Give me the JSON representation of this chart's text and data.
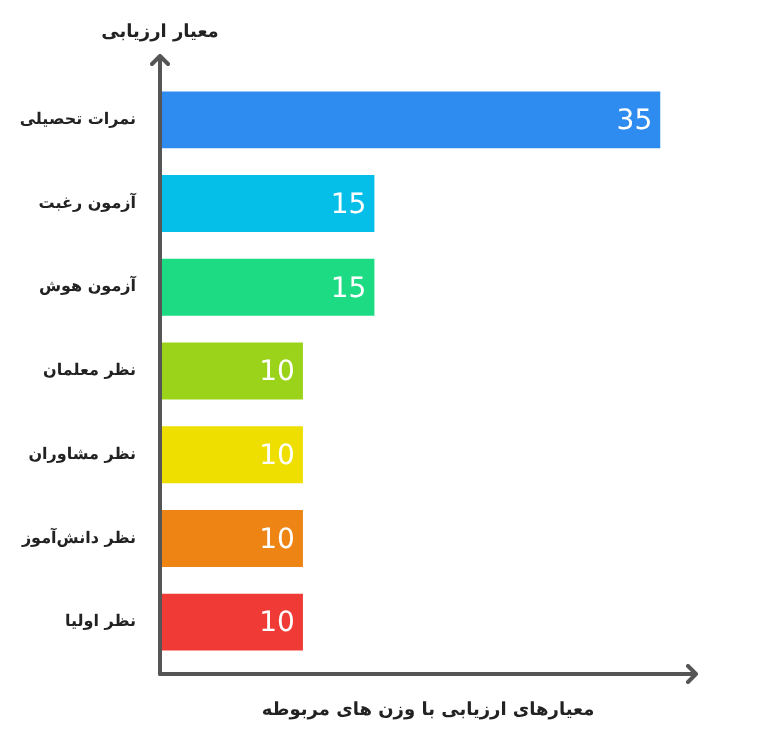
{
  "chart_data": {
    "type": "bar",
    "orientation": "horizontal",
    "ylabel": "معیار ارزیابی",
    "xlabel": "معیارهای ارزیابی با وزن های مربوطه",
    "categories": [
      "نمرات تحصیلی",
      "آزمون رغبت",
      "آزمون هوش",
      "نظر معلمان",
      "نظر مشاوران",
      "نظر دانش‌آموز",
      "نظر اولیا"
    ],
    "values": [
      35,
      15,
      15,
      10,
      10,
      10,
      10
    ],
    "colors": [
      "#2e8bef",
      "#05bfe8",
      "#1ddb82",
      "#9ad31a",
      "#eedf00",
      "#ee8413",
      "#f03a35"
    ],
    "xlim": [
      0,
      37.5
    ],
    "data_labels": true,
    "tick_labels": "y",
    "grid": false,
    "legend": false
  }
}
